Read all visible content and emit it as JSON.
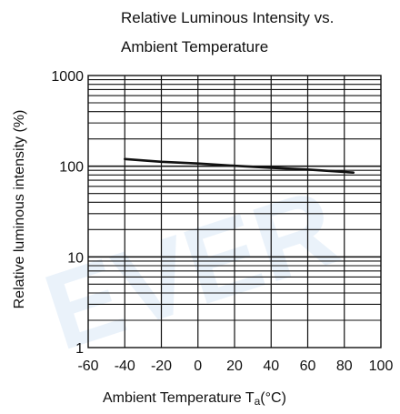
{
  "chart_data": {
    "type": "line",
    "title_lines": [
      "Relative Luminous Intensity vs.",
      "Ambient Temperature"
    ],
    "xlabel": "Ambient Temperature T",
    "xlabel_sub": "a",
    "xlabel_unit": "(°C)",
    "ylabel": "Relative luminous intensity (%)",
    "xlim": [
      -60,
      100
    ],
    "ylim": [
      1,
      1000
    ],
    "yscale": "log",
    "grid": true,
    "x_ticks": [
      "-60",
      "-40",
      "-20",
      "0",
      "20",
      "40",
      "60",
      "80",
      "100"
    ],
    "y_ticks": [
      "1",
      "10",
      "100",
      "1000"
    ],
    "series": [
      {
        "x": [
          -40,
          -20,
          0,
          20,
          40,
          60,
          85
        ],
        "y": [
          120,
          112,
          107,
          101,
          96,
          92,
          85
        ]
      }
    ],
    "watermark": "EVER"
  },
  "colors": {
    "grid": "#111111",
    "line": "#111111",
    "watermark": "#e3eef9"
  }
}
